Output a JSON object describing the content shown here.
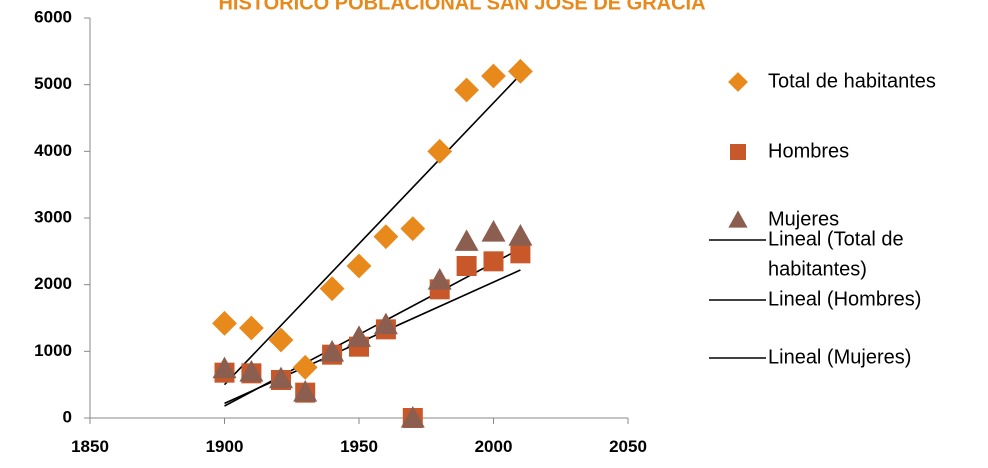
{
  "chart_data": {
    "type": "scatter",
    "title": "HISTORICO POBLACIONAL SAN JOSE DE GRACIA",
    "xlim": [
      1850,
      2050
    ],
    "ylim": [
      0,
      6000
    ],
    "x_ticks": [
      1850,
      1900,
      1950,
      2000,
      2050
    ],
    "y_ticks": [
      0,
      1000,
      2000,
      3000,
      4000,
      5000,
      6000
    ],
    "grid": false,
    "legend_position": "right",
    "series": [
      {
        "name": "Total de habitantes",
        "marker": "diamond",
        "color": "#E8891B",
        "x": [
          1900,
          1910,
          1921,
          1930,
          1940,
          1950,
          1960,
          1970,
          1980,
          1990,
          2000,
          2010
        ],
        "y": [
          1420,
          1350,
          1170,
          760,
          1940,
          2280,
          2720,
          2840,
          4000,
          4920,
          5130,
          5200
        ]
      },
      {
        "name": "Hombres",
        "marker": "square",
        "color": "#C8582A",
        "x": [
          1900,
          1910,
          1921,
          1930,
          1940,
          1950,
          1960,
          1970,
          1980,
          1990,
          2000,
          2010
        ],
        "y": [
          680,
          670,
          570,
          380,
          950,
          1070,
          1330,
          0,
          1930,
          2280,
          2350,
          2470
        ]
      },
      {
        "name": "Mujeres",
        "marker": "triangle",
        "color": "#8B5E4F",
        "x": [
          1900,
          1910,
          1921,
          1930,
          1940,
          1950,
          1960,
          1970,
          1980,
          1990,
          2000,
          2010
        ],
        "y": [
          740,
          690,
          590,
          390,
          990,
          1210,
          1400,
          0,
          2070,
          2650,
          2790,
          2730
        ]
      }
    ],
    "trendlines": [
      {
        "name": "Lineal (Total de habitantes)",
        "label_lines": [
          "Lineal (Total de",
          "habitantes)"
        ],
        "x": [
          1900,
          2010
        ],
        "y": [
          500,
          5150
        ],
        "color": "#000000"
      },
      {
        "name": "Lineal (Hombres)",
        "label_lines": [
          "Lineal (Hombres)"
        ],
        "x": [
          1900,
          2010
        ],
        "y": [
          180,
          2540
        ],
        "color": "#000000"
      },
      {
        "name": "Lineal (Mujeres)",
        "label_lines": [
          "Lineal (Mujeres)"
        ],
        "x": [
          1900,
          2010
        ],
        "y": [
          220,
          2220
        ],
        "color": "#000000"
      }
    ],
    "title_color": "#E8891B"
  }
}
